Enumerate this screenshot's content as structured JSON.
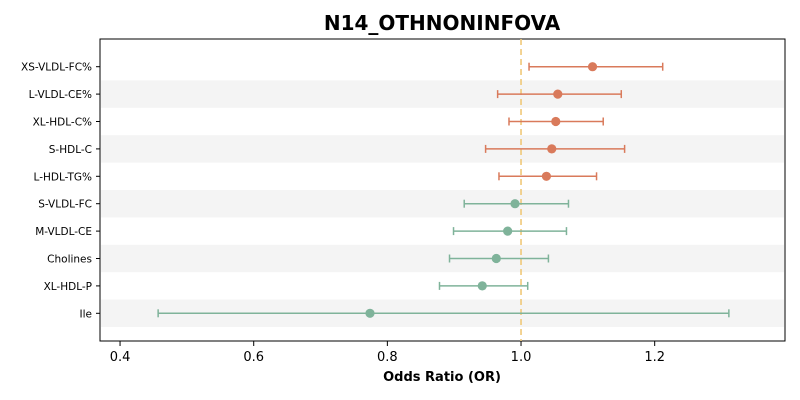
{
  "chart_data": {
    "type": "forest",
    "title": "N14_OTHNONINFOVA",
    "xlabel": "Odds Ratio (OR)",
    "ylabel": "",
    "xlim": [
      0.37,
      1.395
    ],
    "xticks": [
      0.4,
      0.6,
      0.8,
      1.0,
      1.2
    ],
    "xtick_labels": [
      "0.4",
      "0.6",
      "0.8",
      "1.0",
      "1.2"
    ],
    "reference_line": 1.0,
    "reference_line_style": "dashed",
    "row_shading": "alternating",
    "grid": false,
    "colors": {
      "above_one": "#d97a5b",
      "below_one": "#7fb39a",
      "reference_line": "#f0c878",
      "row_shade": "#f4f4f4"
    },
    "rows": [
      {
        "label": "XS-VLDL-FC%",
        "or": 1.107,
        "ci_low": 1.012,
        "ci_high": 1.212
      },
      {
        "label": "L-VLDL-CE%",
        "or": 1.055,
        "ci_low": 0.965,
        "ci_high": 1.15
      },
      {
        "label": "XL-HDL-C%",
        "or": 1.052,
        "ci_low": 0.982,
        "ci_high": 1.123
      },
      {
        "label": "S-HDL-C",
        "or": 1.046,
        "ci_low": 0.947,
        "ci_high": 1.155
      },
      {
        "label": "L-HDL-TG%",
        "or": 1.038,
        "ci_low": 0.967,
        "ci_high": 1.113
      },
      {
        "label": "S-VLDL-FC",
        "or": 0.991,
        "ci_low": 0.915,
        "ci_high": 1.071
      },
      {
        "label": "M-VLDL-CE",
        "or": 0.98,
        "ci_low": 0.899,
        "ci_high": 1.068
      },
      {
        "label": "Cholines",
        "or": 0.963,
        "ci_low": 0.893,
        "ci_high": 1.041
      },
      {
        "label": "XL-HDL-P",
        "or": 0.942,
        "ci_low": 0.878,
        "ci_high": 1.01
      },
      {
        "label": "Ile",
        "or": 0.774,
        "ci_low": 0.457,
        "ci_high": 1.311
      }
    ]
  }
}
